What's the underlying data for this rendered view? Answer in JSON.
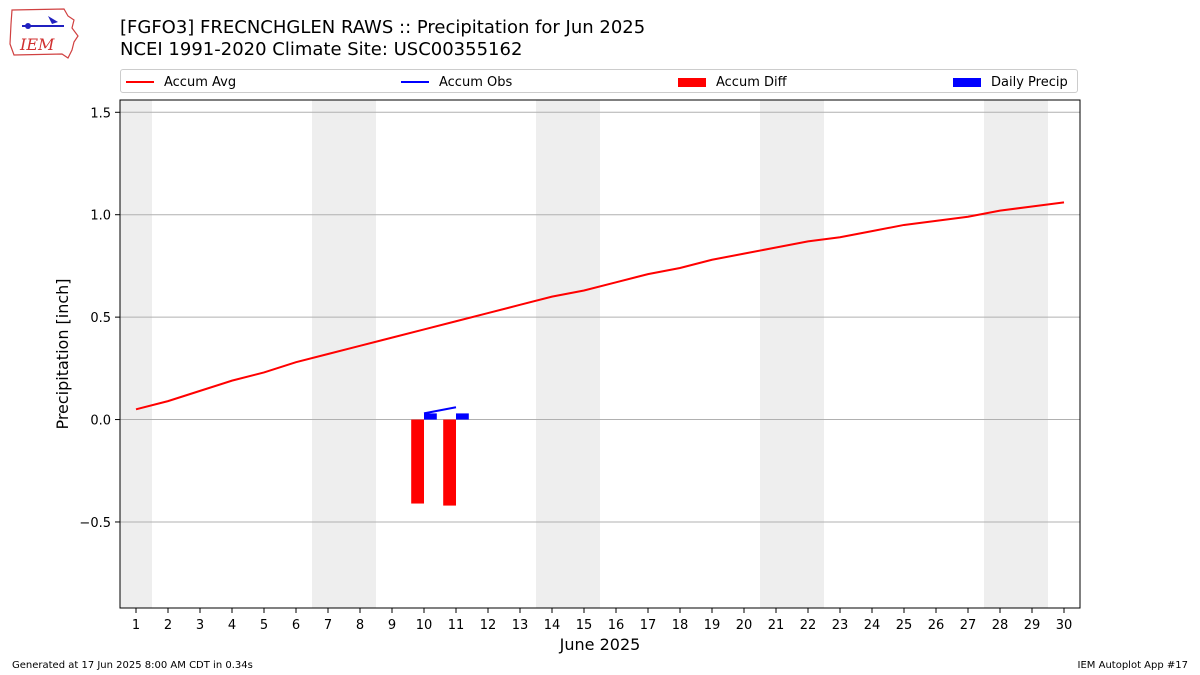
{
  "header": {
    "logo_text": "IEM",
    "title_line1": "[FGFO3] FRECNCHGLEN RAWS :: Precipitation for Jun 2025",
    "title_line2": "NCEI 1991-2020 Climate Site: USC00355162"
  },
  "footer": {
    "generated": "Generated at 17 Jun 2025 8:00 AM CDT in 0.34s",
    "app": "IEM Autoplot App #17"
  },
  "colors": {
    "avg": "#ff0000",
    "obs": "#0000ff",
    "diff": "#ff0000",
    "daily": "#0000ff",
    "weekend": "#eeeeee",
    "grid": "#b0b0b0"
  },
  "chart_data": {
    "type": "line",
    "xlabel": "June 2025",
    "ylabel": "Precipitation [inch]",
    "xlim": [
      0.5,
      30.5
    ],
    "ylim": [
      -0.92,
      1.56
    ],
    "x_ticks": [
      1,
      2,
      3,
      4,
      5,
      6,
      7,
      8,
      9,
      10,
      11,
      12,
      13,
      14,
      15,
      16,
      17,
      18,
      19,
      20,
      21,
      22,
      23,
      24,
      25,
      26,
      27,
      28,
      29,
      30
    ],
    "y_ticks": [
      -0.5,
      0.0,
      0.5,
      1.0,
      1.5
    ],
    "y_tick_labels": [
      "−0.5",
      "0.0",
      "0.5",
      "1.0",
      "1.5"
    ],
    "grid": "horizontal",
    "legend_position": "top",
    "legend": [
      "Accum Avg",
      "Accum Obs",
      "Accum Diff",
      "Daily Precip"
    ],
    "weekend_days": [
      1,
      7,
      8,
      14,
      15,
      21,
      22,
      28,
      29
    ],
    "series": [
      {
        "name": "Accum Avg",
        "kind": "line",
        "x": [
          1,
          2,
          3,
          4,
          5,
          6,
          7,
          8,
          9,
          10,
          11,
          12,
          13,
          14,
          15,
          16,
          17,
          18,
          19,
          20,
          21,
          22,
          23,
          24,
          25,
          26,
          27,
          28,
          29,
          30
        ],
        "values": [
          0.05,
          0.09,
          0.14,
          0.19,
          0.23,
          0.28,
          0.32,
          0.36,
          0.4,
          0.44,
          0.48,
          0.52,
          0.56,
          0.6,
          0.63,
          0.67,
          0.71,
          0.74,
          0.78,
          0.81,
          0.84,
          0.87,
          0.89,
          0.92,
          0.95,
          0.97,
          0.99,
          1.02,
          1.04,
          1.06
        ]
      },
      {
        "name": "Accum Obs",
        "kind": "line",
        "x": [
          10,
          11
        ],
        "values": [
          0.03,
          0.06
        ]
      },
      {
        "name": "Accum Diff",
        "kind": "bar",
        "x": [
          10,
          11
        ],
        "values": [
          -0.41,
          -0.42
        ]
      },
      {
        "name": "Daily Precip",
        "kind": "bar",
        "x": [
          10,
          11
        ],
        "values": [
          0.03,
          0.03
        ]
      }
    ]
  }
}
